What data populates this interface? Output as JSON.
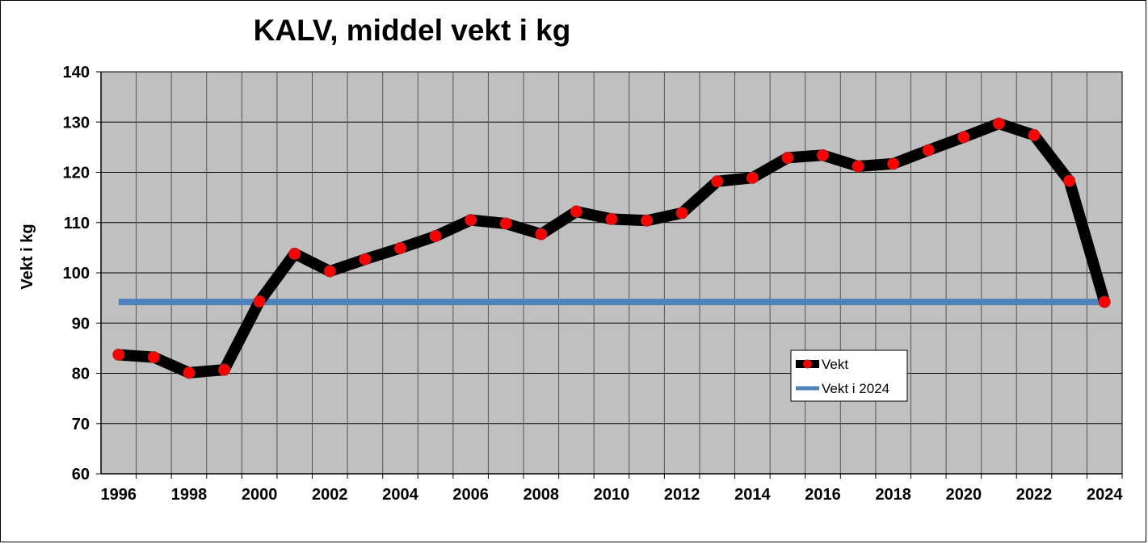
{
  "chart_data": {
    "type": "line",
    "title": "KALV, middel vekt i kg",
    "ylabel": "Vekt i kg",
    "xlabel": "",
    "ylim": [
      60,
      140
    ],
    "yticks": [
      60,
      70,
      80,
      90,
      100,
      110,
      120,
      130,
      140
    ],
    "xlim": [
      1995.5,
      2024.5
    ],
    "xticks": [
      1996,
      1998,
      2000,
      2002,
      2004,
      2006,
      2008,
      2010,
      2012,
      2014,
      2016,
      2018,
      2020,
      2022,
      2024
    ],
    "grid": true,
    "legend_position": "lower-right",
    "colors": {
      "plot_background": "#c0c0c0",
      "grid": "#000000",
      "vekt_line": "#000000",
      "vekt_marker": "#ff0000",
      "vekt_2024_line": "#4f81bd"
    },
    "series": [
      {
        "name": "Vekt",
        "x": [
          1996,
          1997,
          1998,
          1999,
          2000,
          2001,
          2002,
          2003,
          2004,
          2005,
          2006,
          2007,
          2008,
          2009,
          2010,
          2011,
          2012,
          2013,
          2014,
          2015,
          2016,
          2017,
          2018,
          2019,
          2020,
          2021,
          2022,
          2023,
          2024
        ],
        "values": [
          83.7,
          83.2,
          80.1,
          80.7,
          94.3,
          103.8,
          100.3,
          102.7,
          104.9,
          107.3,
          110.5,
          109.8,
          107.7,
          112.2,
          110.7,
          110.4,
          111.9,
          118.2,
          118.9,
          122.9,
          123.4,
          121.2,
          121.7,
          124.4,
          127.0,
          129.7,
          127.4,
          118.3,
          94.2
        ]
      },
      {
        "name": "Vekt i 2024",
        "x": [
          1996,
          2024
        ],
        "values": [
          94.2,
          94.2
        ]
      }
    ]
  }
}
